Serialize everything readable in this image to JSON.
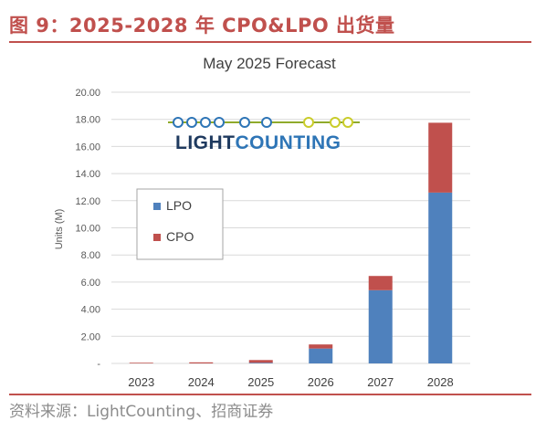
{
  "figure": {
    "title": "图 9：2025-2028 年 CPO&LPO 出货量",
    "source": "资料来源：LightCounting、招商证券"
  },
  "logo": {
    "text_dark": "LIGHT",
    "text_light": "COUNTING"
  },
  "colors": {
    "accent": "#c0504d",
    "lpo": "#4f81bd",
    "cpo": "#c0504d"
  },
  "chart_data": {
    "type": "bar",
    "stacked": true,
    "title": "May 2025 Forecast",
    "xlabel": "",
    "ylabel": "Units (M)",
    "categories": [
      "2023",
      "2024",
      "2025",
      "2026",
      "2027",
      "2028"
    ],
    "series": [
      {
        "name": "LPO",
        "color": "#4f81bd",
        "values": [
          0.0,
          0.0,
          0.05,
          1.1,
          5.4,
          12.6
        ]
      },
      {
        "name": "CPO",
        "color": "#c0504d",
        "values": [
          0.05,
          0.08,
          0.2,
          0.3,
          1.05,
          5.15
        ]
      }
    ],
    "ylim": [
      0,
      20
    ],
    "yticks": [
      "-",
      "2.00",
      "4.00",
      "6.00",
      "8.00",
      "10.00",
      "12.00",
      "14.00",
      "16.00",
      "18.00",
      "20.00"
    ],
    "grid": true,
    "legend": "left"
  }
}
